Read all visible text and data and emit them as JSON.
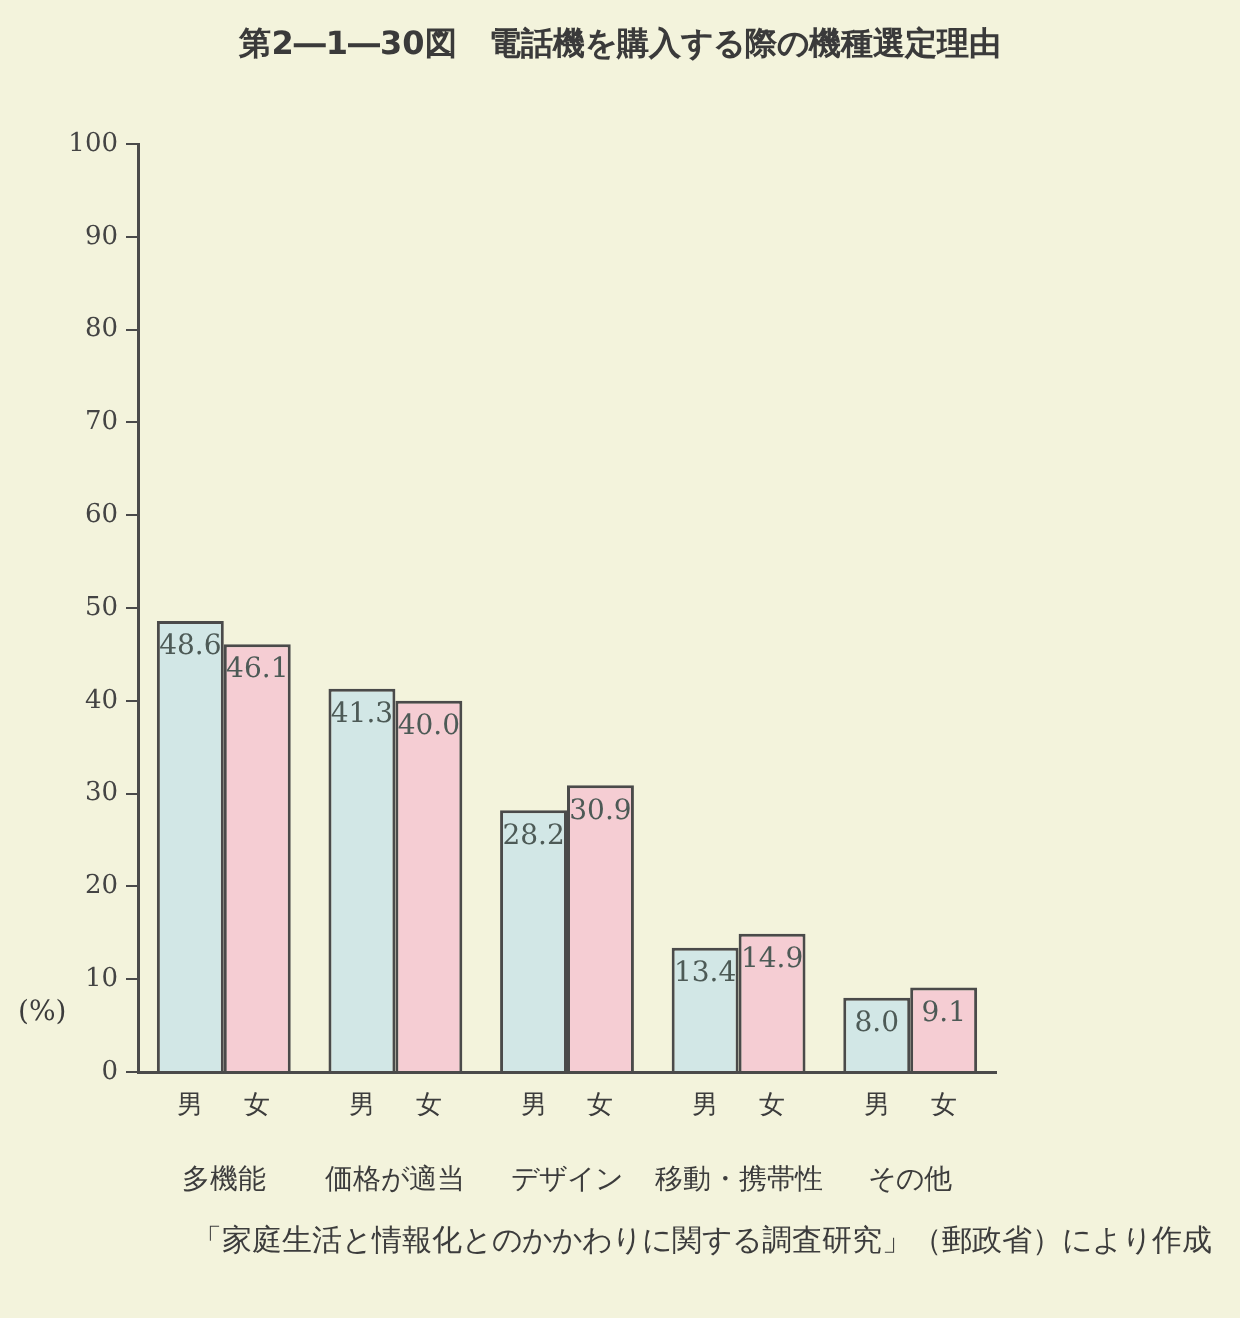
{
  "chart_data": {
    "type": "bar",
    "title": "第2―1―30図　電話機を購入する際の機種選定理由",
    "ylabel": "(%)",
    "annotations": [
      "「家庭生活と情報化とのかかわりに関する調査研究」（郵政省）により作成"
    ],
    "categories": [
      "多機能",
      "価格が適当",
      "デザイン",
      "移動・携帯性",
      "その他"
    ],
    "series": [
      {
        "name": "男",
        "color": "#d2e7e6",
        "values": [
          48.6,
          41.3,
          28.2,
          13.4,
          8.0
        ],
        "value_labels": [
          "48.6",
          "41.3",
          "28.2",
          "13.4",
          "8.0"
        ]
      },
      {
        "name": "女",
        "color": "#f5cdd3",
        "values": [
          46.1,
          40.0,
          30.9,
          14.9,
          9.1
        ],
        "value_labels": [
          "46.1",
          "40.0",
          "30.9",
          "14.9",
          "9.1"
        ]
      }
    ],
    "ylim": [
      0,
      100
    ],
    "yticks": [
      0,
      10,
      20,
      30,
      40,
      50,
      60,
      70,
      80,
      90,
      100
    ]
  }
}
